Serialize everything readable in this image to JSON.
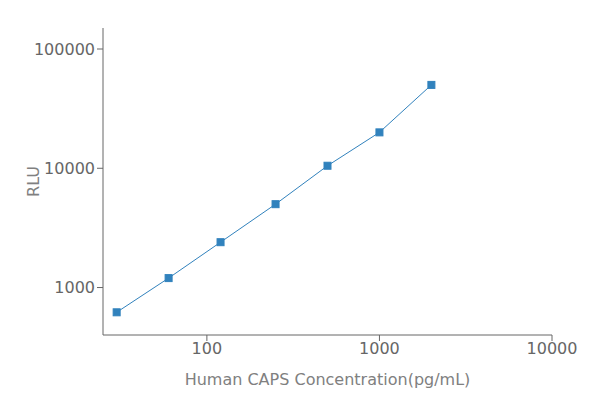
{
  "chart_data": {
    "type": "line",
    "x": [
      30,
      60,
      120,
      250,
      500,
      1000,
      2000
    ],
    "values": [
      620,
      1200,
      2400,
      5000,
      10500,
      20000,
      50000
    ],
    "xlim": [
      25,
      10000
    ],
    "ylim": [
      400,
      150000
    ],
    "xticks": [
      100,
      1000,
      10000
    ],
    "yticks": [
      1000,
      10000,
      100000
    ],
    "xlabel": "Human CAPS Concentration(pg/mL)",
    "ylabel": "RLU",
    "log": true,
    "grid": false,
    "marker": "square"
  }
}
